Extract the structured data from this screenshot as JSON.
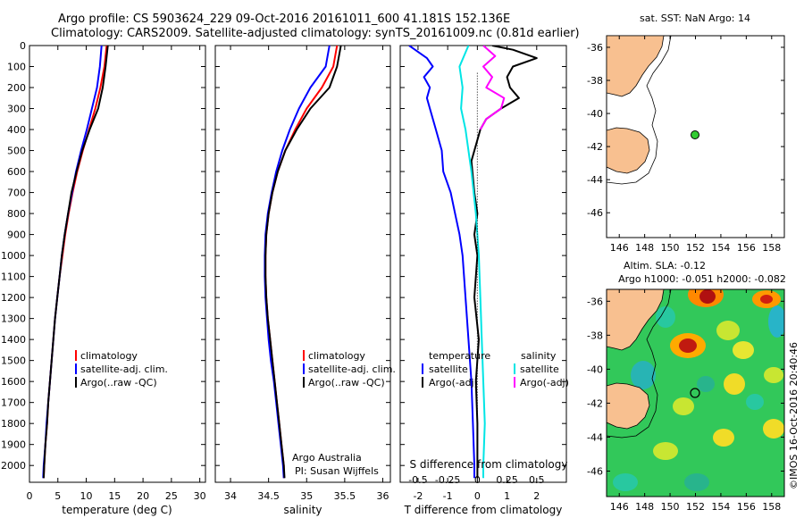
{
  "header": {
    "line1": "Argo profile: CS 5903624_229 09-Oct-2016 20161011_600 41.181S 152.136E",
    "line2": "Climatology: CARS2009. Satellite-adjusted climatology: synTS_20161009.nc (0.81d earlier)"
  },
  "credit": "©IMOS 16-Oct-2016 20:40:46",
  "colors": {
    "climatology": "#ff0000",
    "satellite": "#0000ff",
    "argo": "#000000",
    "salinity_satellite": "#00e5e5",
    "salinity_argo": "#ff00ff",
    "land": "#f8c090",
    "float_marker_sst": "#33cc33"
  },
  "chart_data": [
    {
      "type": "line",
      "id": "temperature",
      "xlabel": "temperature (deg C)",
      "xlim": [
        0,
        31
      ],
      "xticks": [
        0,
        5,
        10,
        15,
        20,
        25,
        30
      ],
      "ylim": [
        0,
        2080
      ],
      "yticks": [
        0,
        100,
        200,
        300,
        400,
        500,
        600,
        700,
        800,
        900,
        1000,
        1100,
        1200,
        1300,
        1400,
        1500,
        1600,
        1700,
        1800,
        1900,
        2000
      ],
      "y_reversed": true,
      "legend": [
        "climatology",
        "satellite-adj. clim.",
        "Argo(..raw -QC)"
      ],
      "series": [
        {
          "name": "climatology",
          "color": "#ff0000",
          "depth": [
            0,
            100,
            200,
            300,
            400,
            500,
            600,
            700,
            800,
            900,
            1000,
            1100,
            1200,
            1300,
            1400,
            1500,
            1600,
            1700,
            1800,
            1900,
            2000,
            2060
          ],
          "values": [
            13.6,
            13.2,
            12.5,
            11.6,
            10.5,
            9.4,
            8.4,
            7.6,
            6.9,
            6.3,
            5.8,
            5.3,
            4.9,
            4.5,
            4.2,
            3.9,
            3.6,
            3.3,
            3.1,
            2.8,
            2.6,
            2.5
          ]
        },
        {
          "name": "satellite-adj. clim.",
          "color": "#0000ff",
          "depth": [
            0,
            100,
            200,
            300,
            400,
            500,
            600,
            700,
            800,
            900,
            1000,
            1100,
            1200,
            1300,
            1400,
            1500,
            1600,
            1700,
            1800,
            1900,
            2000,
            2060
          ],
          "values": [
            12.7,
            12.4,
            11.9,
            11.0,
            10.1,
            9.1,
            8.2,
            7.5,
            6.8,
            6.2,
            5.7,
            5.3,
            4.9,
            4.5,
            4.2,
            3.9,
            3.6,
            3.3,
            3.0,
            2.8,
            2.5,
            2.4
          ]
        },
        {
          "name": "Argo(..raw -QC)",
          "color": "#000000",
          "depth": [
            0,
            100,
            200,
            300,
            400,
            500,
            600,
            700,
            800,
            900,
            1000,
            1100,
            1200,
            1300,
            1400,
            1500,
            1600,
            1700,
            1800,
            1900,
            2000,
            2060
          ],
          "values": [
            13.8,
            13.4,
            12.9,
            12.1,
            10.6,
            9.3,
            8.3,
            7.4,
            6.8,
            6.2,
            5.7,
            5.3,
            4.9,
            4.5,
            4.2,
            3.9,
            3.6,
            3.3,
            3.1,
            2.8,
            2.6,
            2.5
          ]
        }
      ]
    },
    {
      "type": "line",
      "id": "salinity",
      "xlabel": "salinity",
      "xlim": [
        33.8,
        36.1
      ],
      "xticks": [
        34,
        34.5,
        35,
        35.5,
        36
      ],
      "ylim": [
        0,
        2080
      ],
      "y_reversed": true,
      "legend": [
        "climatology",
        "satellite-adj. clim.",
        "Argo(..raw -QC)"
      ],
      "annotation": [
        "Argo Australia",
        "PI: Susan Wijffels"
      ],
      "series": [
        {
          "name": "climatology",
          "color": "#ff0000",
          "depth": [
            0,
            100,
            200,
            300,
            400,
            500,
            600,
            700,
            800,
            900,
            1000,
            1100,
            1200,
            1300,
            1400,
            1500,
            1600,
            1700,
            1800,
            1900,
            2000,
            2060
          ],
          "values": [
            35.4,
            35.35,
            35.2,
            35.0,
            34.85,
            34.72,
            34.62,
            34.55,
            34.5,
            34.47,
            34.46,
            34.46,
            34.47,
            34.49,
            34.52,
            34.55,
            34.58,
            34.61,
            34.64,
            34.67,
            34.7,
            34.7
          ]
        },
        {
          "name": "satellite-adj. clim.",
          "color": "#0000ff",
          "depth": [
            0,
            100,
            200,
            300,
            400,
            500,
            600,
            700,
            800,
            900,
            1000,
            1100,
            1200,
            1300,
            1400,
            1500,
            1600,
            1700,
            1800,
            1900,
            2000,
            2060
          ],
          "values": [
            35.3,
            35.25,
            35.05,
            34.9,
            34.78,
            34.68,
            34.6,
            34.54,
            34.49,
            34.46,
            34.45,
            34.45,
            34.46,
            34.48,
            34.5,
            34.53,
            34.57,
            34.6,
            34.63,
            34.66,
            34.69,
            34.7
          ]
        },
        {
          "name": "Argo(..raw -QC)",
          "color": "#000000",
          "depth": [
            0,
            100,
            200,
            300,
            400,
            500,
            600,
            700,
            800,
            900,
            1000,
            1100,
            1200,
            1300,
            1400,
            1500,
            1600,
            1700,
            1800,
            1900,
            2000,
            2060
          ],
          "values": [
            35.45,
            35.4,
            35.3,
            35.05,
            34.87,
            34.72,
            34.62,
            34.55,
            34.5,
            34.47,
            34.46,
            34.46,
            34.47,
            34.49,
            34.52,
            34.55,
            34.58,
            34.61,
            34.64,
            34.67,
            34.7,
            34.71
          ]
        }
      ]
    },
    {
      "type": "line",
      "id": "difference",
      "xlabel": "T difference from climatology",
      "xlabel_top": "S difference from climatology",
      "xlim": [
        -2.6,
        3.0
      ],
      "xticks": [
        -2,
        -1,
        0,
        1,
        2
      ],
      "xticks_s": [
        "-0.5",
        "-0.25",
        "0",
        "0.25",
        "0.5"
      ],
      "ylim": [
        0,
        2080
      ],
      "y_reversed": true,
      "legend_groups": [
        {
          "title": "temperature",
          "items": [
            "satellite",
            "Argo(-adj)"
          ]
        },
        {
          "title": "salinity",
          "items": [
            "satellite",
            "Argo(-adj)"
          ]
        }
      ],
      "series": [
        {
          "name": "temperature satellite",
          "color": "#0000ff",
          "depth": [
            0,
            20,
            60,
            100,
            150,
            200,
            250,
            300,
            400,
            500,
            600,
            700,
            800,
            900,
            1000,
            1200,
            1400,
            1600,
            1800,
            2000,
            2060
          ],
          "values": [
            -2.3,
            -2.1,
            -1.7,
            -1.5,
            -1.8,
            -1.6,
            -1.7,
            -1.6,
            -1.4,
            -1.2,
            -1.15,
            -0.9,
            -0.75,
            -0.6,
            -0.5,
            -0.4,
            -0.3,
            -0.2,
            -0.15,
            -0.1,
            -0.1
          ]
        },
        {
          "name": "temperature Argo(-adj)",
          "color": "#000000",
          "depth": [
            0,
            20,
            60,
            100,
            150,
            200,
            250,
            300,
            350,
            400,
            550,
            700,
            800,
            900,
            1000,
            1200,
            1400,
            1600,
            1800,
            2000,
            2060
          ],
          "values": [
            0.5,
            1.2,
            2.0,
            1.2,
            1.0,
            1.1,
            1.4,
            0.8,
            0.3,
            0.1,
            -0.2,
            -0.1,
            0.0,
            -0.1,
            0.0,
            -0.1,
            0.05,
            -0.05,
            0.0,
            0.0,
            0.0
          ]
        },
        {
          "name": "salinity satellite",
          "color": "#00e5e5",
          "depth": [
            0,
            100,
            200,
            300,
            400,
            600,
            800,
            1000,
            1200,
            1400,
            1600,
            1800,
            2000,
            2060
          ],
          "values": [
            -0.3,
            -0.6,
            -0.5,
            -0.55,
            -0.4,
            -0.2,
            -0.05,
            0.05,
            0.1,
            0.15,
            0.2,
            0.25,
            0.2,
            0.2
          ]
        },
        {
          "name": "salinity Argo(-adj)",
          "color": "#ff00ff",
          "depth": [
            0,
            50,
            100,
            150,
            200,
            250,
            300,
            350,
            400
          ],
          "values": [
            0.2,
            0.6,
            0.2,
            0.5,
            0.3,
            0.9,
            0.8,
            0.3,
            0.1
          ]
        }
      ]
    }
  ],
  "maps": [
    {
      "id": "sst",
      "title": "sat. SST: NaN Argo: 14",
      "lon_ticks": [
        146,
        148,
        150,
        152,
        154,
        156,
        158
      ],
      "lat_ticks": [
        -36,
        -38,
        -40,
        -42,
        -44,
        -46
      ],
      "lon_range": [
        145,
        159
      ],
      "lat_range": [
        -35.3,
        -47.5
      ],
      "float": {
        "lon": 152.136,
        "lat": -41.181
      }
    },
    {
      "id": "sla",
      "title_lines": [
        "Altim. SLA: -0.12",
        "Argo h1000: -0.051 h2000: -0.082"
      ],
      "lon_ticks": [
        146,
        148,
        150,
        152,
        154,
        156,
        158
      ],
      "lat_ticks": [
        -36,
        -38,
        -40,
        -42,
        -44,
        -46
      ],
      "lon_range": [
        145,
        159
      ],
      "lat_range": [
        -35.3,
        -47.5
      ],
      "float": {
        "lon": 152.136,
        "lat": -41.181
      }
    }
  ]
}
